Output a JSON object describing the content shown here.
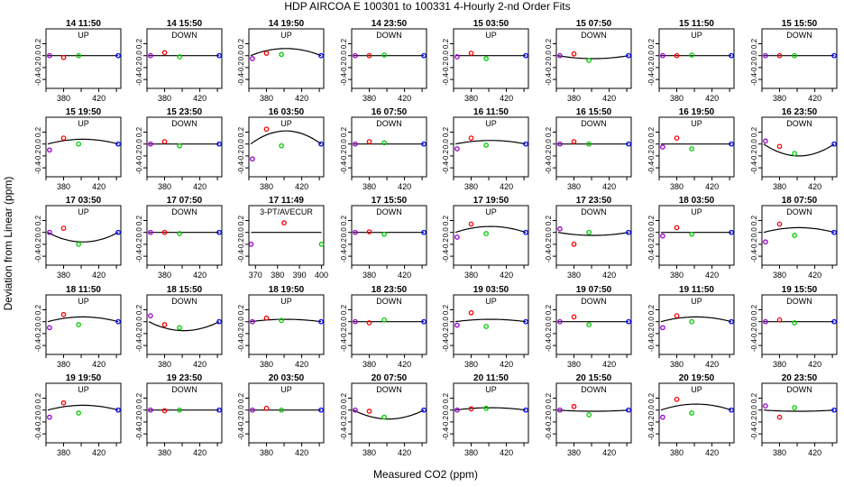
{
  "title": "HDP   AIRCOA E   100301 to 100331   4-Hourly 2-nd Order Fits",
  "xlabel": "Measured CO2 (ppm)",
  "ylabel": "Deviation from Linear (ppm)",
  "colors": {
    "red": "#ff0000",
    "green": "#00cc00",
    "blue": "#0000ff",
    "purple": "#9900cc",
    "curve": "#000000",
    "frame": "#000000"
  },
  "chart_data": {
    "type": "scatter",
    "default_xticks": [
      "380",
      "420"
    ],
    "yticks": [
      "0.2",
      "0.0",
      "-0.2",
      "-0.4"
    ],
    "special_xticks": [
      "370",
      "380",
      "390",
      "400"
    ],
    "panels": [
      {
        "title": "14 11:50",
        "label": "UP"
      },
      {
        "title": "14 15:50",
        "label": "DOWN"
      },
      {
        "title": "14 19:50",
        "label": "UP"
      },
      {
        "title": "14 23:50",
        "label": "DOWN"
      },
      {
        "title": "15 03:50",
        "label": "UP"
      },
      {
        "title": "15 07:50",
        "label": "DOWN"
      },
      {
        "title": "15 11:50",
        "label": "UP"
      },
      {
        "title": "15 15:50",
        "label": "DOWN"
      },
      {
        "title": "15 19:50",
        "label": "UP"
      },
      {
        "title": "15 23:50",
        "label": "DOWN"
      },
      {
        "title": "16 03:50",
        "label": "UP"
      },
      {
        "title": "16 07:50",
        "label": "DOWN"
      },
      {
        "title": "16 11:50",
        "label": "UP"
      },
      {
        "title": "16 15:50",
        "label": "DOWN"
      },
      {
        "title": "16 19:50",
        "label": "UP"
      },
      {
        "title": "16 23:50",
        "label": "DOWN"
      },
      {
        "title": "17 03:50",
        "label": "UP"
      },
      {
        "title": "17 07:50",
        "label": "DOWN"
      },
      {
        "title": "17 11:49",
        "label": "3-PT/AVECUR"
      },
      {
        "title": "17 15:50",
        "label": "DOWN"
      },
      {
        "title": "17 19:50",
        "label": "UP"
      },
      {
        "title": "17 23:50",
        "label": "DOWN"
      },
      {
        "title": "18 03:50",
        "label": "UP"
      },
      {
        "title": "18 07:50",
        "label": "DOWN"
      },
      {
        "title": "18 11:50",
        "label": "UP"
      },
      {
        "title": "18 15:50",
        "label": "DOWN"
      },
      {
        "title": "18 19:50",
        "label": "UP"
      },
      {
        "title": "18 23:50",
        "label": "DOWN"
      },
      {
        "title": "19 03:50",
        "label": "UP"
      },
      {
        "title": "19 07:50",
        "label": "DOWN"
      },
      {
        "title": "19 11:50",
        "label": "UP"
      },
      {
        "title": "19 15:50",
        "label": "DOWN"
      },
      {
        "title": "19 19:50",
        "label": "UP"
      },
      {
        "title": "19 23:50",
        "label": "DOWN"
      },
      {
        "title": "20 03:50",
        "label": "UP"
      },
      {
        "title": "20 07:50",
        "label": "DOWN"
      },
      {
        "title": "20 11:50",
        "label": "UP"
      },
      {
        "title": "20 15:50",
        "label": "DOWN"
      },
      {
        "title": "20 19:50",
        "label": "UP"
      },
      {
        "title": "20 23:50",
        "label": "DOWN"
      }
    ]
  }
}
